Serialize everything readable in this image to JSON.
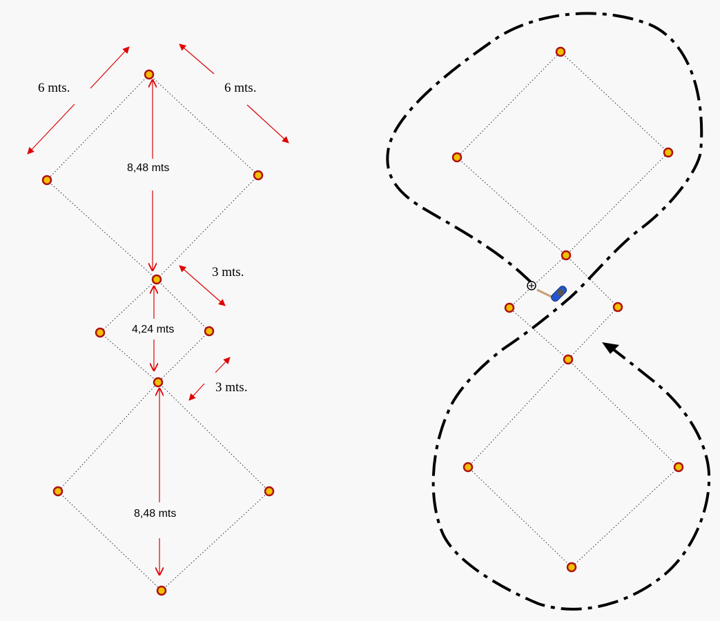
{
  "labels": {
    "side_top_left": "6 mts.",
    "side_top_right": "6 mts.",
    "diag_top": "8,48 mts",
    "side_mid_upper": "3 mts.",
    "diag_mid": "4,24 mts",
    "side_mid_lower": "3 mts.",
    "diag_bottom": "8,48 mts"
  },
  "colors": {
    "background": "#f8f8f8",
    "cone_fill": "#f0c000",
    "cone_ring": "#b01010",
    "dimension_arrow": "#e00000",
    "path": "#000000",
    "rider": "#2255cc"
  },
  "icons": {
    "cone": "cone-marker-icon",
    "rider": "motorcycle-rider-icon"
  }
}
